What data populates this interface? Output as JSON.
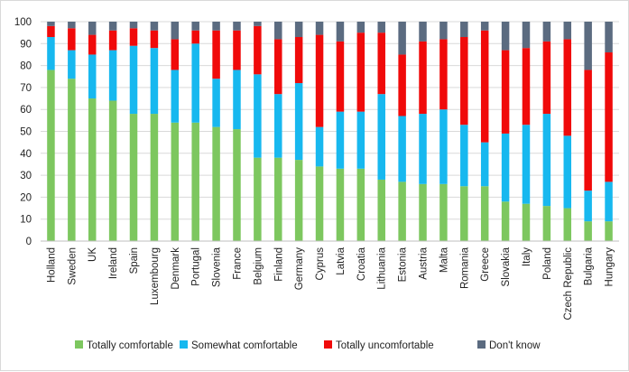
{
  "chart_data": {
    "type": "bar",
    "stacked": true,
    "categories": [
      "Holland",
      "Sweden",
      "UK",
      "Ireland",
      "Spain",
      "Luxembourg",
      "Denmark",
      "Portugal",
      "Slovenia",
      "France",
      "Belgium",
      "Finland",
      "Germany",
      "Cyprus",
      "Latvia",
      "Croatia",
      "Lithuania",
      "Estonia",
      "Austria",
      "Malta",
      "Romania",
      "Greece",
      "Slovakia",
      "Italy",
      "Poland",
      "Czech Republic",
      "Bulgaria",
      "Hungary"
    ],
    "series": [
      {
        "name": "Totally comfortable",
        "color": "#7dc75f",
        "values": [
          78,
          74,
          65,
          64,
          58,
          58,
          54,
          54,
          52,
          51,
          38,
          38,
          37,
          34,
          33,
          33,
          28,
          27,
          26,
          26,
          25,
          25,
          18,
          17,
          16,
          15,
          9,
          9
        ]
      },
      {
        "name": "Somewhat comfortable",
        "color": "#17b8ef",
        "values": [
          15,
          13,
          20,
          23,
          31,
          30,
          24,
          36,
          22,
          27,
          38,
          29,
          35,
          18,
          26,
          26,
          39,
          30,
          32,
          34,
          28,
          20,
          31,
          36,
          42,
          33,
          14,
          18
        ]
      },
      {
        "name": "Totally uncomfortable",
        "color": "#f00a0a",
        "values": [
          5,
          10,
          9,
          9,
          8,
          8,
          14,
          6,
          22,
          18,
          22,
          25,
          21,
          42,
          32,
          36,
          28,
          28,
          33,
          32,
          40,
          51,
          38,
          35,
          33,
          44,
          55,
          59
        ]
      },
      {
        "name": "Don't know",
        "color": "#5b6b80",
        "values": [
          2,
          3,
          6,
          4,
          3,
          4,
          8,
          4,
          4,
          4,
          2,
          8,
          7,
          6,
          9,
          5,
          5,
          15,
          9,
          8,
          7,
          4,
          13,
          12,
          9,
          8,
          22,
          14
        ]
      }
    ],
    "ylim": [
      0,
      100
    ],
    "yticks": [
      "0",
      "10",
      "20",
      "30",
      "40",
      "50",
      "60",
      "70",
      "80",
      "90",
      "100"
    ],
    "title": "",
    "xlabel": "",
    "ylabel": "",
    "grid": true,
    "legend_position": "bottom"
  }
}
